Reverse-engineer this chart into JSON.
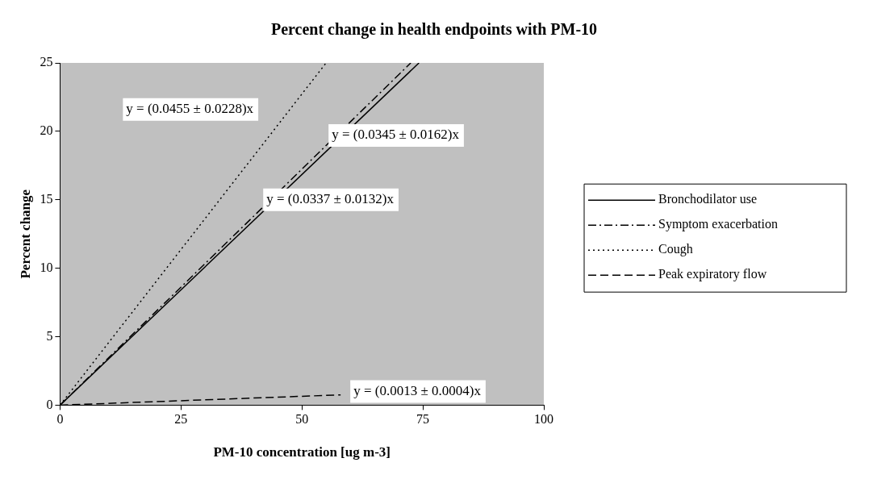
{
  "chart_data": {
    "type": "line",
    "title": "Percent change in health endpoints with PM-10",
    "xlabel": "PM-10 concentration [ug m-3]",
    "ylabel": "Percent change",
    "xlim": [
      0,
      100
    ],
    "xticks": [
      0,
      25,
      50,
      75,
      100
    ],
    "ylim": [
      0,
      25
    ],
    "yticks": [
      0,
      5,
      10,
      15,
      20,
      25
    ],
    "grid": false,
    "legend": "right",
    "marker": "none",
    "series": [
      {
        "name": "Bronchodilator use",
        "color": "#000000",
        "line_style": "solid",
        "x": [
          0,
          74.2
        ],
        "values": [
          0,
          25
        ]
      },
      {
        "name": "Symptom exacerbation",
        "color": "#000000",
        "line_style": "dashdot",
        "x": [
          0,
          72.5
        ],
        "values": [
          0,
          25
        ]
      },
      {
        "name": "Cough",
        "color": "#000000",
        "line_style": "dotted",
        "x": [
          0,
          55
        ],
        "values": [
          0,
          25
        ]
      },
      {
        "name": "Peak expiratory flow",
        "color": "#000000",
        "line_style": "dashed",
        "x": [
          0,
          58
        ],
        "values": [
          0,
          0.75
        ]
      }
    ],
    "annotations": [
      "y = (0.0455 ± 0.0228)x",
      "y = (0.0345 ± 0.0162)x",
      "y = (0.0337 ± 0.0132)x",
      "y = (0.0013 ± 0.0004)x"
    ]
  }
}
